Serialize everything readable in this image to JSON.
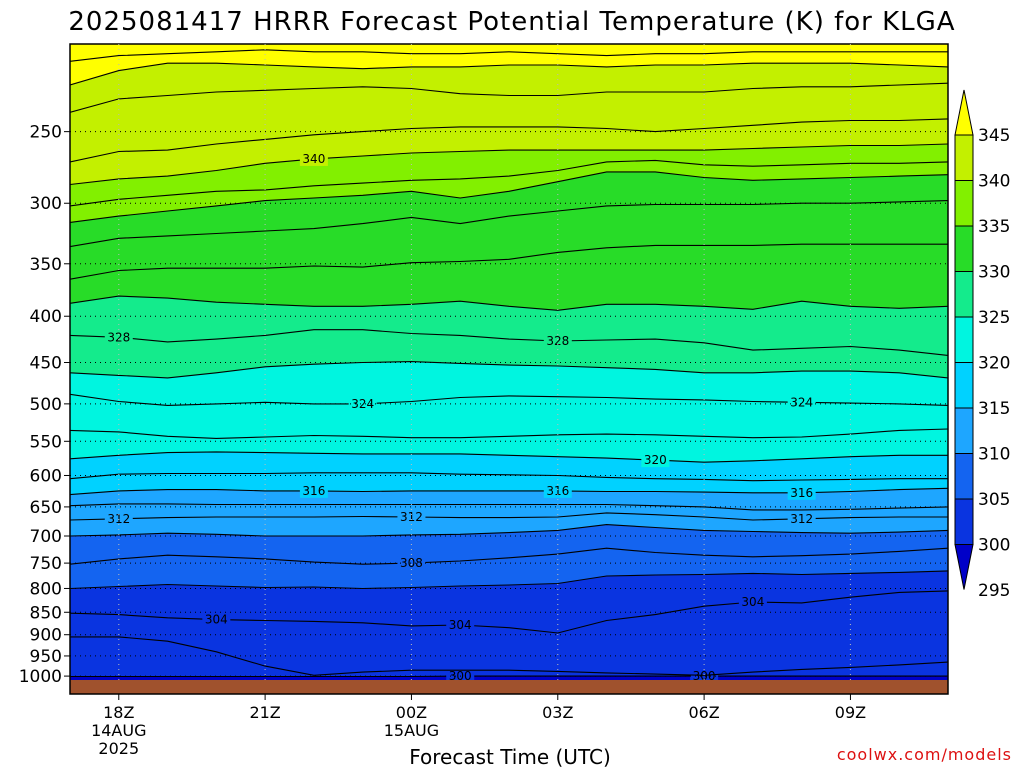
{
  "page": {
    "title": "2025081417 HRRR Forecast Potential Temperature (K) for KLGA",
    "watermark": "coolwx.com/models"
  },
  "chart_data": {
    "type": "heatmap",
    "title": "2025081417 HRRR Forecast Potential Temperature (K) for KLGA",
    "xlabel": "Forecast Time (UTC)",
    "ylabel": "",
    "y_scale": "log",
    "y_inverted": true,
    "ylim": [
      1010,
      200
    ],
    "y_ticks": [
      250,
      300,
      350,
      400,
      450,
      500,
      550,
      600,
      650,
      700,
      750,
      800,
      850,
      900,
      950,
      1000
    ],
    "x_hours": [
      17,
      18,
      19,
      20,
      21,
      22,
      23,
      24,
      25,
      26,
      27,
      28,
      29,
      30,
      31,
      32,
      33,
      34,
      35
    ],
    "x_ticks": [
      {
        "hour": 18,
        "lines": [
          "18Z",
          "14AUG",
          "2025"
        ]
      },
      {
        "hour": 21,
        "lines": [
          "21Z"
        ]
      },
      {
        "hour": 24,
        "lines": [
          "00Z",
          "15AUG"
        ]
      },
      {
        "hour": 27,
        "lines": [
          "03Z"
        ]
      },
      {
        "hour": 30,
        "lines": [
          "06Z"
        ]
      },
      {
        "hour": 33,
        "lines": [
          "09Z"
        ]
      }
    ],
    "levels": [
      295,
      300,
      305,
      310,
      315,
      320,
      325,
      330,
      335,
      340,
      345
    ],
    "colors": [
      "#0000c8",
      "#0a34e0",
      "#1464f0",
      "#1ea6ff",
      "#00d2ff",
      "#00f5e0",
      "#14eb8c",
      "#28dc28",
      "#82f000",
      "#c3f000",
      "#ffff00"
    ],
    "colorbar_labels": [
      "295",
      "300",
      "305",
      "310",
      "315",
      "320",
      "325",
      "330",
      "335",
      "340",
      "345"
    ],
    "contours": [
      {
        "value": 300,
        "p": [
          1001,
          1001,
          1001,
          1001,
          1001,
          1001,
          1001,
          1001,
          1000,
          1000,
          1000,
          1000,
          1000,
          1000,
          1000,
          1000,
          1000,
          1000,
          1000
        ],
        "labels": [
          {
            "hour": 25.0,
            "text": "300"
          },
          {
            "hour": 30.0,
            "text": "300"
          }
        ]
      },
      {
        "value": 302,
        "p": [
          905,
          905,
          915,
          940,
          975,
          998,
          990,
          985,
          985,
          985,
          988,
          992,
          995,
          998,
          990,
          983,
          978,
          972,
          965
        ],
        "labels": []
      },
      {
        "value": 304,
        "p": [
          852,
          855,
          862,
          866,
          868,
          870,
          873,
          880,
          878,
          884,
          896,
          868,
          855,
          837,
          828,
          830,
          818,
          808,
          805
        ],
        "labels": [
          {
            "hour": 20.0,
            "text": "304"
          },
          {
            "hour": 25.0,
            "text": "304"
          },
          {
            "hour": 31.0,
            "text": "304"
          }
        ]
      },
      {
        "value": 306,
        "p": [
          800,
          796,
          792,
          795,
          798,
          797,
          800,
          798,
          795,
          793,
          790,
          775,
          773,
          772,
          770,
          772,
          770,
          768,
          765
        ],
        "labels": []
      },
      {
        "value": 308,
        "p": [
          752,
          742,
          735,
          738,
          742,
          748,
          752,
          750,
          746,
          740,
          733,
          722,
          730,
          735,
          738,
          736,
          733,
          728,
          722
        ],
        "labels": [
          {
            "hour": 24.0,
            "text": "308"
          }
        ]
      },
      {
        "value": 310,
        "p": [
          700,
          698,
          695,
          697,
          700,
          700,
          700,
          698,
          697,
          694,
          690,
          680,
          685,
          690,
          692,
          694,
          695,
          693,
          690
        ],
        "labels": []
      },
      {
        "value": 312,
        "p": [
          672,
          670,
          668,
          667,
          667,
          667,
          666,
          667,
          668,
          668,
          667,
          660,
          663,
          667,
          672,
          670,
          668,
          667,
          667
        ],
        "labels": [
          {
            "hour": 18.0,
            "text": "312"
          },
          {
            "hour": 24.0,
            "text": "312"
          },
          {
            "hour": 32.0,
            "text": "312"
          }
        ]
      },
      {
        "value": 314,
        "p": [
          648,
          645,
          645,
          646,
          646,
          646,
          646,
          646,
          646,
          646,
          646,
          646,
          648,
          650,
          655,
          655,
          654,
          652,
          650
        ],
        "labels": []
      },
      {
        "value": 316,
        "p": [
          630,
          624,
          622,
          622,
          624,
          624,
          625,
          624,
          624,
          624,
          624,
          625,
          625,
          626,
          627,
          627,
          625,
          622,
          620
        ],
        "labels": [
          {
            "hour": 22.0,
            "text": "316"
          },
          {
            "hour": 27.0,
            "text": "316"
          },
          {
            "hour": 32.0,
            "text": "316"
          }
        ]
      },
      {
        "value": 318,
        "p": [
          605,
          598,
          597,
          597,
          597,
          596,
          596,
          596,
          598,
          599,
          600,
          603,
          605,
          606,
          608,
          607,
          606,
          605,
          605
        ],
        "labels": []
      },
      {
        "value": 320,
        "p": [
          575,
          570,
          566,
          565,
          566,
          567,
          568,
          568,
          568,
          570,
          572,
          574,
          577,
          580,
          578,
          575,
          572,
          570,
          570
        ],
        "labels": [
          {
            "hour": 29.0,
            "text": "320"
          }
        ]
      },
      {
        "value": 322,
        "p": [
          535,
          537,
          543,
          546,
          544,
          542,
          543,
          545,
          545,
          543,
          541,
          540,
          541,
          543,
          545,
          544,
          540,
          535,
          533
        ],
        "labels": []
      },
      {
        "value": 324,
        "p": [
          488,
          497,
          502,
          500,
          498,
          500,
          500,
          497,
          492,
          490,
          491,
          492,
          494,
          495,
          497,
          498,
          499,
          500,
          502
        ],
        "labels": [
          {
            "hour": 23.0,
            "text": "324"
          },
          {
            "hour": 32.0,
            "text": "324"
          }
        ]
      },
      {
        "value": 326,
        "p": [
          462,
          465,
          468,
          462,
          455,
          452,
          450,
          449,
          451,
          453,
          454,
          456,
          458,
          462,
          462,
          460,
          460,
          462,
          468
        ],
        "labels": []
      },
      {
        "value": 328,
        "p": [
          420,
          422,
          427,
          424,
          420,
          414,
          414,
          418,
          420,
          424,
          426,
          425,
          424,
          428,
          436,
          434,
          432,
          436,
          442
        ],
        "labels": [
          {
            "hour": 18.0,
            "text": "328"
          },
          {
            "hour": 27.0,
            "text": "328"
          }
        ]
      },
      {
        "value": 330,
        "p": [
          387,
          380,
          382,
          386,
          388,
          390,
          390,
          388,
          385,
          390,
          394,
          388,
          388,
          390,
          393,
          385,
          390,
          392,
          390
        ],
        "labels": []
      },
      {
        "value": 332,
        "p": [
          364,
          356,
          354,
          354,
          354,
          352,
          353,
          349,
          348,
          346,
          340,
          336,
          334,
          334,
          334,
          333,
          333,
          333,
          333
        ],
        "labels": []
      },
      {
        "value": 334,
        "p": [
          335,
          328,
          326,
          324,
          322,
          320,
          316,
          311,
          316,
          310,
          306,
          302,
          301,
          301,
          301,
          300,
          300,
          299,
          298
        ],
        "labels": []
      },
      {
        "value": 336,
        "p": [
          315,
          310,
          306,
          302,
          298,
          296,
          294,
          291,
          296,
          291,
          284,
          277,
          277,
          281,
          283,
          282,
          281,
          280,
          279
        ],
        "labels": []
      },
      {
        "value": 338,
        "p": [
          302,
          297,
          294,
          291,
          290,
          287,
          285,
          283,
          282,
          280,
          276,
          270,
          269,
          272,
          273,
          272,
          271,
          271,
          270
        ],
        "labels": []
      },
      {
        "value": 340,
        "p": [
          286,
          282,
          280,
          276,
          271,
          268,
          266,
          264,
          263,
          262,
          262,
          262,
          262,
          262,
          261,
          260,
          259,
          259,
          258
        ],
        "labels": [
          {
            "hour": 22.0,
            "text": "340"
          }
        ]
      },
      {
        "value": 342,
        "p": [
          270,
          263,
          262,
          258,
          255,
          252,
          250,
          248,
          247,
          247,
          247,
          248,
          250,
          248,
          246,
          244,
          243,
          243,
          242
        ],
        "labels": []
      },
      {
        "value": 344,
        "p": [
          238,
          230,
          228,
          226,
          225,
          224,
          223,
          224,
          227,
          228,
          228,
          226,
          226,
          226,
          224,
          223,
          223,
          222,
          221
        ],
        "labels": []
      },
      {
        "value": 346,
        "p": [
          222,
          214,
          210,
          210,
          211,
          212,
          213,
          212,
          212,
          211,
          211,
          212,
          211,
          211,
          210,
          210,
          210,
          211,
          212
        ],
        "labels": []
      },
      {
        "value": 348,
        "p": [
          209,
          206,
          205,
          204,
          203,
          204,
          204,
          205,
          205,
          204,
          205,
          206,
          205,
          205,
          204,
          204,
          204,
          204,
          204
        ],
        "labels": []
      }
    ],
    "grid": true,
    "legend": "right colorbar"
  }
}
